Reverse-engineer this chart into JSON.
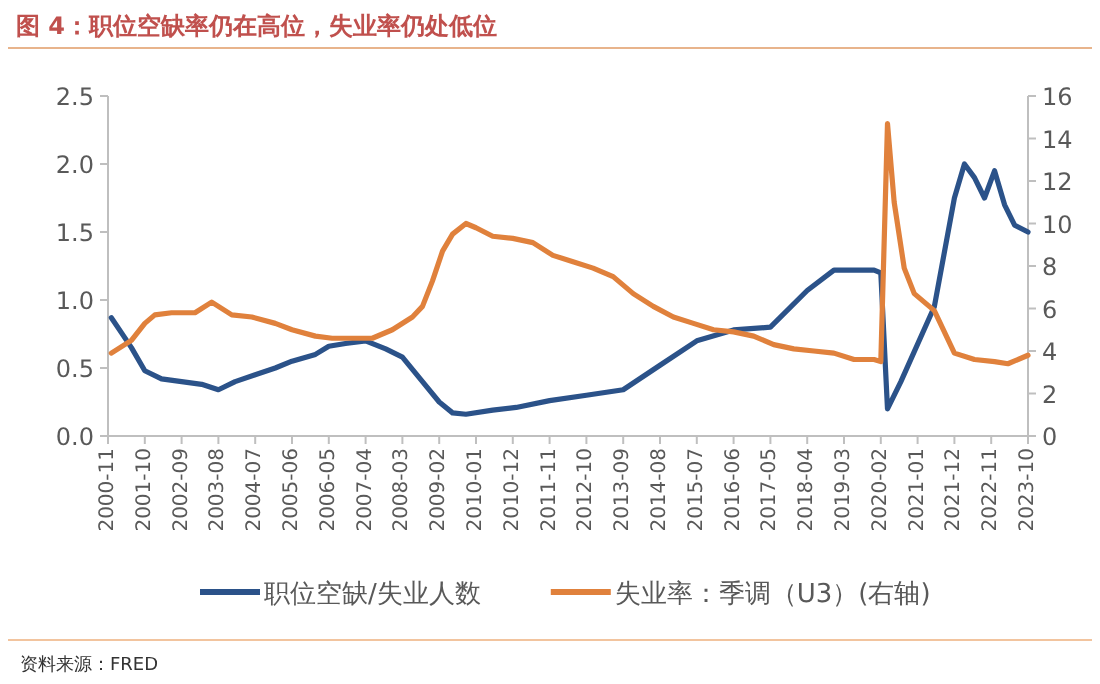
{
  "chart_data": {
    "type": "line",
    "title": "图 4：职位空缺率仍在高位，失业率仍处低位",
    "annotations": [
      "资料来源：FRED"
    ],
    "xlim": [
      "2000-11",
      "2023-10"
    ],
    "xticks": [
      "2000-11",
      "2001-10",
      "2002-09",
      "2003-08",
      "2004-07",
      "2005-06",
      "2006-05",
      "2007-04",
      "2008-03",
      "2009-02",
      "2010-01",
      "2010-12",
      "2011-11",
      "2012-10",
      "2013-09",
      "2014-08",
      "2015-07",
      "2016-06",
      "2017-05",
      "2018-04",
      "2019-03",
      "2020-02",
      "2021-01",
      "2021-12",
      "2022-11",
      "2023-10"
    ],
    "ylim": [
      0,
      2.5
    ],
    "yticks": [
      {
        "value": 0,
        "label": "0.0"
      },
      {
        "value": 0.5,
        "label": "0.5"
      },
      {
        "value": 1,
        "label": "1.0"
      },
      {
        "value": 1.5,
        "label": "1.5"
      },
      {
        "value": 2,
        "label": "2.0"
      },
      {
        "value": 2.5,
        "label": "2.5"
      }
    ],
    "y2lim": [
      0,
      16
    ],
    "y2ticks": [
      0,
      2,
      4,
      6,
      8,
      10,
      12,
      14,
      16
    ],
    "legend": "bottom",
    "grid": false,
    "series": [
      {
        "name": "职位空缺/失业人数",
        "color": "#2b5289",
        "x": [
          "2000-12",
          "2001-03",
          "2001-06",
          "2001-10",
          "2002-03",
          "2002-09",
          "2003-03",
          "2003-08",
          "2004-01",
          "2004-07",
          "2005-01",
          "2005-06",
          "2006-01",
          "2006-05",
          "2006-10",
          "2007-04",
          "2007-10",
          "2008-03",
          "2008-09",
          "2009-02",
          "2009-06",
          "2009-10",
          "2010-06",
          "2011-01",
          "2011-11",
          "2012-10",
          "2013-09",
          "2014-08",
          "2015-07",
          "2016-06",
          "2017-05",
          "2018-04",
          "2018-12",
          "2019-06",
          "2019-12",
          "2020-02",
          "2020-04",
          "2020-08",
          "2020-12",
          "2021-06",
          "2021-12",
          "2022-03",
          "2022-06",
          "2022-09",
          "2022-12",
          "2023-03",
          "2023-06",
          "2023-10"
        ],
        "values": [
          0.87,
          0.76,
          0.65,
          0.48,
          0.42,
          0.4,
          0.38,
          0.34,
          0.4,
          0.45,
          0.5,
          0.55,
          0.6,
          0.66,
          0.68,
          0.7,
          0.64,
          0.58,
          0.4,
          0.25,
          0.17,
          0.16,
          0.19,
          0.21,
          0.26,
          0.3,
          0.34,
          0.52,
          0.7,
          0.78,
          0.8,
          1.07,
          1.22,
          1.22,
          1.22,
          1.2,
          0.2,
          0.4,
          0.62,
          0.95,
          1.75,
          2.0,
          1.9,
          1.75,
          1.95,
          1.7,
          1.55,
          1.5
        ]
      },
      {
        "name": "失业率：季调（U3）(右轴)",
        "color": "#e0813c",
        "axis": "y2",
        "x": [
          "2000-12",
          "2001-06",
          "2001-10",
          "2002-01",
          "2002-06",
          "2003-01",
          "2003-06",
          "2003-12",
          "2004-06",
          "2005-01",
          "2005-06",
          "2006-01",
          "2006-06",
          "2007-01",
          "2007-06",
          "2007-12",
          "2008-06",
          "2008-09",
          "2008-12",
          "2009-03",
          "2009-06",
          "2009-10",
          "2010-01",
          "2010-06",
          "2010-12",
          "2011-06",
          "2011-12",
          "2012-06",
          "2012-12",
          "2013-06",
          "2013-12",
          "2014-06",
          "2014-12",
          "2015-06",
          "2015-12",
          "2016-06",
          "2016-12",
          "2017-06",
          "2017-12",
          "2018-06",
          "2018-12",
          "2019-06",
          "2019-12",
          "2020-02",
          "2020-04",
          "2020-06",
          "2020-09",
          "2020-12",
          "2021-06",
          "2021-12",
          "2022-06",
          "2022-12",
          "2023-04",
          "2023-10"
        ],
        "values": [
          3.9,
          4.5,
          5.3,
          5.7,
          5.8,
          5.8,
          6.3,
          5.7,
          5.6,
          5.3,
          5.0,
          4.7,
          4.6,
          4.6,
          4.6,
          5.0,
          5.6,
          6.1,
          7.3,
          8.7,
          9.5,
          10.0,
          9.8,
          9.4,
          9.3,
          9.1,
          8.5,
          8.2,
          7.9,
          7.5,
          6.7,
          6.1,
          5.6,
          5.3,
          5.0,
          4.9,
          4.7,
          4.3,
          4.1,
          4.0,
          3.9,
          3.6,
          3.6,
          3.5,
          14.7,
          11.0,
          7.9,
          6.7,
          5.9,
          3.9,
          3.6,
          3.5,
          3.4,
          3.8
        ]
      }
    ]
  }
}
